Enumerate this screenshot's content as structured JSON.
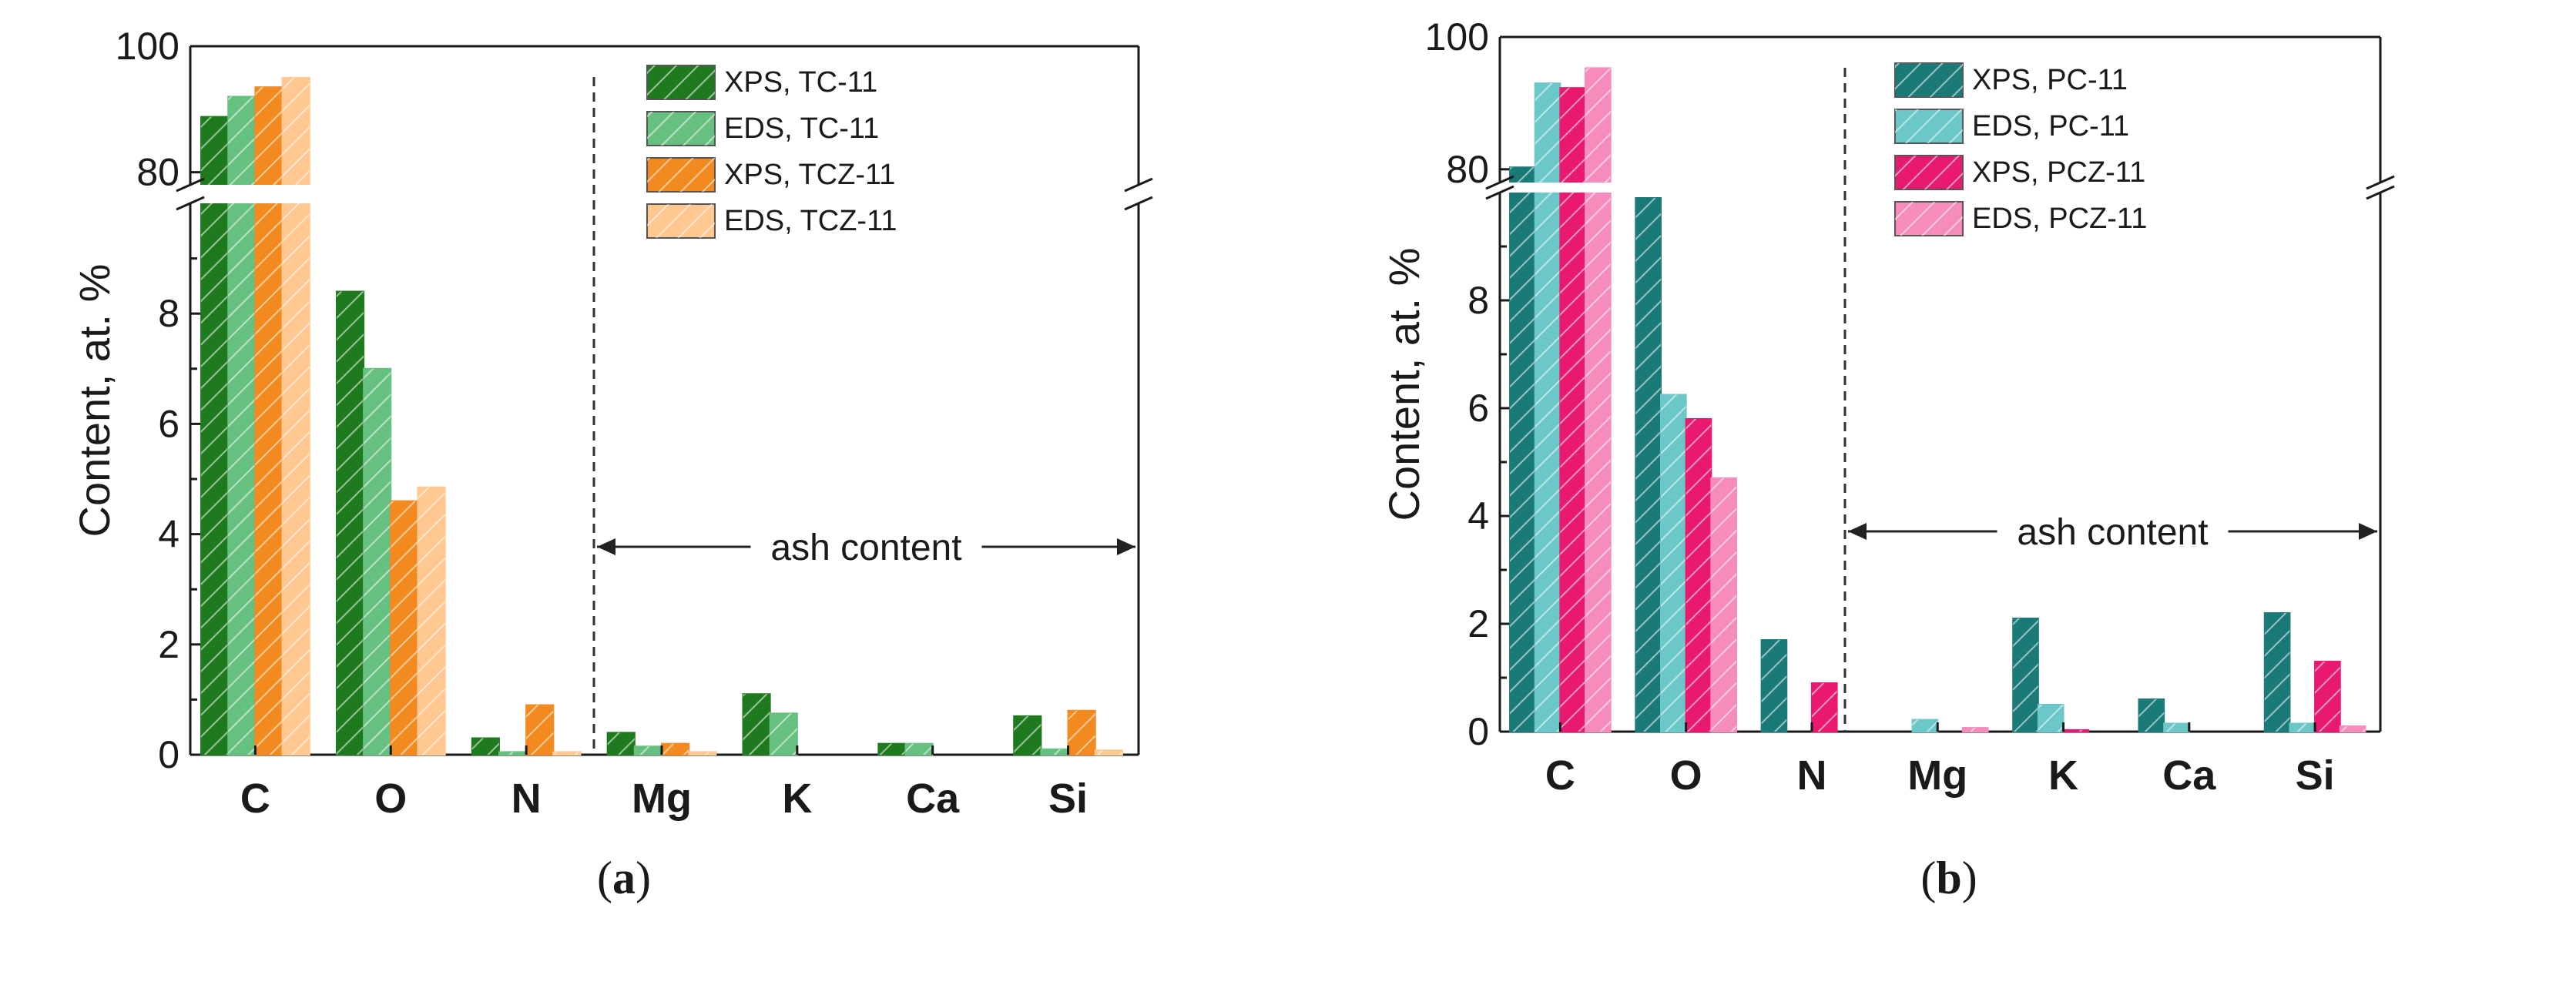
{
  "chart_data": [
    {
      "type": "bar",
      "panel": "a",
      "caption_letter": "a",
      "caption_open": "(",
      "caption_close": ")",
      "categories": [
        "C",
        "O",
        "N",
        "Mg",
        "K",
        "Ca",
        "Si"
      ],
      "ylabel": "Content, at. %",
      "broken_axis": {
        "lower_range": [
          0,
          10
        ],
        "upper_range": [
          78,
          100
        ]
      },
      "lower_ticks": [
        0,
        2,
        4,
        6,
        8
      ],
      "upper_ticks": [
        80,
        100
      ],
      "annotation": "ash content",
      "series": [
        {
          "name": "XPS, TC-11",
          "color": "#1f7a1f",
          "values": [
            88.8,
            8.4,
            0.3,
            0.4,
            1.1,
            0.2,
            0.7
          ]
        },
        {
          "name": "EDS, TC-11",
          "color": "#66c080",
          "values": [
            92.0,
            7.0,
            0.05,
            0.15,
            0.75,
            0.2,
            0.1
          ]
        },
        {
          "name": "XPS, TCZ-11",
          "color": "#f28a20",
          "values": [
            93.5,
            4.6,
            0.9,
            0.2,
            0.0,
            0.0,
            0.8
          ]
        },
        {
          "name": "EDS, TCZ-11",
          "color": "#ffc890",
          "values": [
            95.0,
            4.85,
            0.05,
            0.05,
            0.0,
            0.0,
            0.08
          ]
        }
      ]
    },
    {
      "type": "bar",
      "panel": "b",
      "caption_letter": "b",
      "caption_open": "(",
      "caption_close": ")",
      "categories": [
        "C",
        "O",
        "N",
        "Mg",
        "K",
        "Ca",
        "Si"
      ],
      "ylabel": "Content, at. %",
      "broken_axis": {
        "lower_range": [
          0,
          10
        ],
        "upper_range": [
          78,
          100
        ]
      },
      "lower_ticks": [
        0,
        2,
        4,
        6,
        8
      ],
      "upper_ticks": [
        80,
        100
      ],
      "annotation": "ash content",
      "series": [
        {
          "name": "XPS, PC-11",
          "color": "#1a7a78",
          "values": [
            80.3,
            9.9,
            1.7,
            0.0,
            2.1,
            0.6,
            2.2
          ]
        },
        {
          "name": "EDS, PC-11",
          "color": "#6cc8c8",
          "values": [
            93.0,
            6.25,
            0.0,
            0.22,
            0.5,
            0.15,
            0.15
          ]
        },
        {
          "name": "XPS, PCZ-11",
          "color": "#e8196e",
          "values": [
            92.3,
            5.8,
            0.9,
            0.0,
            0.03,
            0.0,
            1.3
          ]
        },
        {
          "name": "EDS, PCZ-11",
          "color": "#f58cbc",
          "values": [
            95.3,
            4.7,
            0.0,
            0.07,
            0.0,
            0.0,
            0.1
          ]
        }
      ]
    }
  ]
}
